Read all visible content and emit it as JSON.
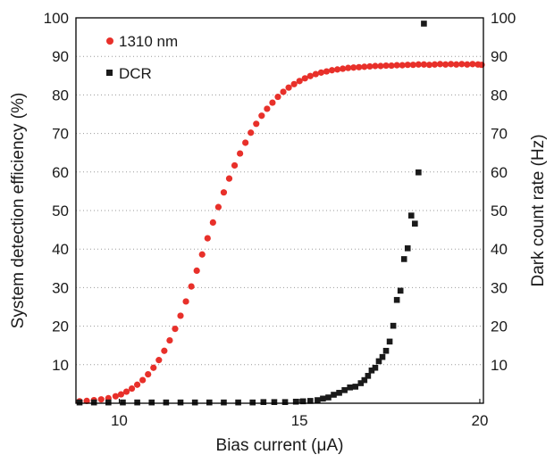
{
  "chart_data": {
    "type": "scatter",
    "xlabel": "Bias current (μA)",
    "ylabel_left": "System detection efficiency (%)",
    "ylabel_right": "Dark count rate (Hz)",
    "xlim": [
      8.8,
      20.1
    ],
    "ylim_left": [
      0,
      100
    ],
    "ylim_right": [
      0,
      100
    ],
    "x_ticks": [
      10,
      15,
      20
    ],
    "y_ticks_left": [
      10,
      20,
      30,
      40,
      50,
      60,
      70,
      80,
      90,
      100
    ],
    "y_ticks_right": [
      10,
      20,
      30,
      40,
      50,
      60,
      70,
      80,
      90,
      100
    ],
    "grid": "horizontal dotted",
    "legend": {
      "placement": "top-left"
    },
    "colors": {
      "sde": "#e8302a",
      "dcr": "#1a1a1a"
    },
    "series": [
      {
        "name": "1310 nm",
        "marker": "circle",
        "axis": "left",
        "x": [
          8.9,
          9.1,
          9.3,
          9.5,
          9.7,
          9.9,
          10.05,
          10.2,
          10.35,
          10.5,
          10.65,
          10.8,
          10.95,
          11.1,
          11.25,
          11.4,
          11.55,
          11.7,
          11.85,
          12.0,
          12.15,
          12.3,
          12.45,
          12.6,
          12.75,
          12.9,
          13.05,
          13.2,
          13.35,
          13.5,
          13.65,
          13.8,
          13.95,
          14.1,
          14.25,
          14.4,
          14.55,
          14.7,
          14.85,
          15.0,
          15.15,
          15.3,
          15.45,
          15.6,
          15.75,
          15.9,
          16.05,
          16.2,
          16.35,
          16.5,
          16.65,
          16.8,
          16.95,
          17.1,
          17.25,
          17.4,
          17.55,
          17.7,
          17.85,
          18.0,
          18.15,
          18.3,
          18.45,
          18.6,
          18.75,
          18.9,
          19.05,
          19.2,
          19.35,
          19.5,
          19.65,
          19.8,
          19.95,
          20.05
        ],
        "y": [
          0.5,
          0.6,
          0.8,
          1.0,
          1.3,
          1.8,
          2.3,
          3.0,
          3.8,
          4.8,
          6.0,
          7.5,
          9.2,
          11.2,
          13.6,
          16.3,
          19.3,
          22.7,
          26.4,
          30.3,
          34.4,
          38.6,
          42.8,
          46.9,
          50.9,
          54.7,
          58.3,
          61.7,
          64.8,
          67.6,
          70.2,
          72.5,
          74.6,
          76.4,
          78.0,
          79.5,
          80.8,
          81.9,
          82.8,
          83.6,
          84.3,
          84.9,
          85.4,
          85.8,
          86.1,
          86.4,
          86.6,
          86.8,
          87.0,
          87.1,
          87.2,
          87.3,
          87.4,
          87.5,
          87.5,
          87.6,
          87.6,
          87.7,
          87.7,
          87.8,
          87.8,
          87.9,
          87.9,
          87.8,
          87.9,
          88.0,
          87.9,
          88.0,
          87.9,
          88.0,
          87.9,
          88.0,
          87.9,
          87.8
        ]
      },
      {
        "name": "DCR",
        "marker": "square",
        "axis": "right",
        "x": [
          8.9,
          9.3,
          9.7,
          10.1,
          10.5,
          10.9,
          11.3,
          11.7,
          12.1,
          12.5,
          12.9,
          13.3,
          13.7,
          14.0,
          14.3,
          14.6,
          14.9,
          15.1,
          15.3,
          15.5,
          15.65,
          15.8,
          15.95,
          16.1,
          16.25,
          16.4,
          16.55,
          16.7,
          16.8,
          16.9,
          17.0,
          17.1,
          17.2,
          17.3,
          17.4,
          17.5,
          17.6,
          17.7,
          17.8,
          17.9,
          18.0,
          18.1,
          18.2,
          18.3,
          18.45
        ],
        "y": [
          0.2,
          0.2,
          0.2,
          0.2,
          0.2,
          0.2,
          0.2,
          0.2,
          0.2,
          0.2,
          0.2,
          0.2,
          0.2,
          0.3,
          0.3,
          0.3,
          0.4,
          0.5,
          0.6,
          0.8,
          1.2,
          1.5,
          2.2,
          2.7,
          3.4,
          4.1,
          4.3,
          5.2,
          6.0,
          7.1,
          8.5,
          9.2,
          10.9,
          12.0,
          13.6,
          16.0,
          20.1,
          26.8,
          29.2,
          37.4,
          40.2,
          48.7,
          46.6,
          59.9,
          98.5
        ]
      }
    ]
  }
}
